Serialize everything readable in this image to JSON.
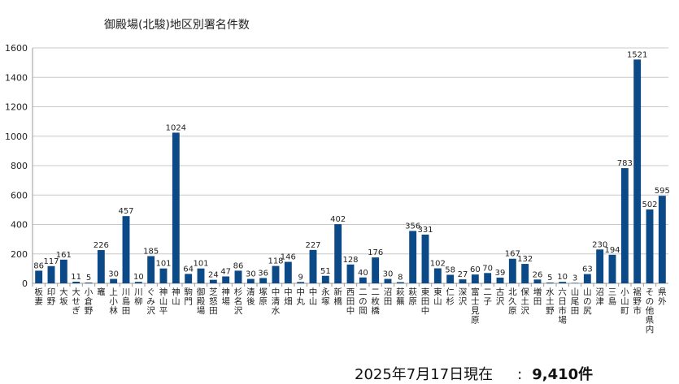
{
  "chart_data": {
    "type": "bar",
    "title": "御殿場(北駿)地区別署名件数",
    "ylim": [
      0,
      1600
    ],
    "yticks": [
      0,
      200,
      400,
      600,
      800,
      1000,
      1200,
      1400,
      1600
    ],
    "grid": true,
    "legend": "none",
    "bar_color": "#0b4a86",
    "categories": [
      "板妻",
      "印野",
      "大坂",
      "大せぎ",
      "小倉野",
      "竈",
      "上小林",
      "川島田",
      "川柳",
      "ぐみ沢",
      "神山平",
      "神山",
      "駒門",
      "御殿場",
      "芝怒田",
      "神場",
      "杉名沢",
      "清後",
      "塚原",
      "中清水",
      "中畑",
      "中丸",
      "中山",
      "永塚",
      "新橋",
      "西田中",
      "二の岡",
      "二枚橋",
      "沼田",
      "萩蕪",
      "萩原",
      "東田中",
      "東山",
      "仁杉",
      "深沢",
      "富士見原",
      "二子",
      "古沢",
      "北久原",
      "保土沢",
      "増田",
      "水土野",
      "六日市場",
      "山尾田",
      "山の尻",
      "沼津",
      "三島",
      "小山町",
      "裾野市",
      "その他県内",
      "県外"
    ],
    "values": [
      86,
      117,
      161,
      11,
      5,
      226,
      30,
      457,
      10,
      185,
      101,
      1024,
      64,
      101,
      24,
      47,
      86,
      30,
      36,
      118,
      146,
      9,
      227,
      51,
      402,
      128,
      40,
      176,
      30,
      8,
      356,
      331,
      102,
      58,
      27,
      60,
      70,
      39,
      167,
      132,
      26,
      5,
      10,
      3,
      63,
      230,
      194,
      783,
      1521,
      502,
      595
    ]
  },
  "footer": {
    "date": "2025年7月17日現在",
    "colon": ":",
    "total": "9,410件"
  }
}
